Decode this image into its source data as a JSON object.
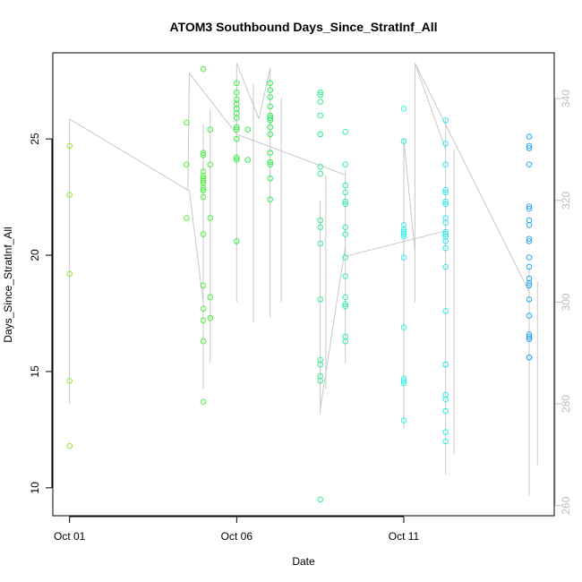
{
  "chart_data": {
    "type": "scatter",
    "title": "ATOM3 Southbound Days_Since_StratInf_All",
    "xlabel": "Date",
    "ylabel": "Days_Since_StratInf_All",
    "xlim": [
      "2014-09-30T12:00",
      "2014-10-15T12:00"
    ],
    "ylim": [
      8.8,
      28.7
    ],
    "y2lim": [
      258,
      349
    ],
    "x_ticks": [
      {
        "label": "Oct 01",
        "value": "2014-10-01"
      },
      {
        "label": "Oct 06",
        "value": "2014-10-06"
      },
      {
        "label": "Oct 11",
        "value": "2014-10-11"
      }
    ],
    "y_ticks": [
      {
        "label": "10",
        "value": 10
      },
      {
        "label": "15",
        "value": 15
      },
      {
        "label": "20",
        "value": 20
      },
      {
        "label": "25",
        "value": 25
      }
    ],
    "y2_ticks": [
      {
        "label": "260",
        "value": 260
      },
      {
        "label": "280",
        "value": 280
      },
      {
        "label": "300",
        "value": 300
      },
      {
        "label": "320",
        "value": 320
      },
      {
        "label": "340",
        "value": 340
      }
    ],
    "grid": false,
    "colors": {
      "axis": "#000000",
      "right_axis": "#bdbdbd",
      "trace": "#c8c8c8"
    },
    "series": [
      {
        "role": "points",
        "groups": [
          {
            "date": "2014-10-01T00:00",
            "color": "#8ee83a",
            "values": [
              24.7,
              22.6,
              19.2,
              14.6,
              11.8
            ]
          },
          {
            "date": "2014-10-04T12:00",
            "color": "#5eea38",
            "values": [
              25.7,
              23.9,
              21.6
            ]
          },
          {
            "date": "2014-10-05T00:00",
            "color": "#49ee3a",
            "values": [
              28.0,
              24.4,
              24.3,
              23.6,
              23.4,
              23.3,
              23.2,
              23.1,
              22.9,
              22.8,
              22.8,
              22.5,
              20.9,
              18.7,
              17.7,
              17.2,
              16.3,
              13.7
            ]
          },
          {
            "date": "2014-10-05T05:00",
            "color": "#45ee3c",
            "values": [
              25.4,
              23.9,
              21.6,
              18.2,
              17.3
            ]
          },
          {
            "date": "2014-10-06T00:00",
            "color": "#2ef040",
            "values": [
              27.4,
              27.0,
              26.7,
              26.5,
              26.3,
              26.1,
              25.9,
              25.5,
              25.4,
              25.0,
              24.2,
              24.1,
              20.6
            ]
          },
          {
            "date": "2014-10-06T08:00",
            "color": "#2ef044",
            "values": [
              25.4,
              24.1
            ]
          },
          {
            "date": "2014-10-07T00:00",
            "color": "#2bf055",
            "values": [
              27.4,
              27.1,
              26.8,
              26.4,
              26.0,
              25.9,
              25.8,
              25.5,
              25.2,
              24.4,
              24.0,
              23.9,
              23.3,
              22.4
            ]
          },
          {
            "date": "2014-10-08T12:00",
            "color": "#32f08d",
            "values": [
              27.0,
              26.9,
              26.6,
              26.0,
              25.2,
              25.2,
              23.8,
              23.5,
              21.5,
              21.2,
              20.5,
              18.1,
              15.5,
              15.3,
              14.8,
              14.6,
              9.5
            ]
          },
          {
            "date": "2014-10-09T06:00",
            "color": "#32f0a0",
            "values": [
              25.3,
              23.9,
              23.0,
              22.7,
              22.3,
              22.2,
              21.2,
              20.9,
              19.9,
              19.1,
              18.2,
              17.9,
              17.8,
              16.5,
              16.3
            ]
          },
          {
            "date": "2014-10-11T00:00",
            "color": "#2ff0e2",
            "values": [
              26.3,
              24.9,
              24.9,
              21.3,
              21.1,
              21.0,
              20.9,
              20.8,
              19.9,
              16.9,
              14.7,
              14.6,
              14.5,
              12.9
            ]
          },
          {
            "date": "2014-10-12T06:00",
            "color": "#2eebf0",
            "values": [
              25.8,
              24.8,
              23.9,
              22.8,
              22.7,
              22.3,
              22.2,
              21.6,
              21.4,
              21.0,
              20.9,
              20.8,
              20.6,
              20.3,
              19.5,
              17.6,
              15.3,
              15.3,
              14.0,
              13.8,
              13.3,
              12.4,
              12.0
            ]
          },
          {
            "date": "2014-10-14T18:00",
            "color": "#2ba6ee",
            "values": [
              25.1,
              24.7,
              24.6,
              23.9,
              22.1,
              22.0,
              21.5,
              21.3,
              20.7,
              20.6,
              19.9,
              19.5,
              19.0,
              18.8,
              18.7,
              18.1,
              17.4,
              16.6,
              16.5,
              16.4,
              16.4,
              15.6,
              15.6
            ]
          }
        ]
      },
      {
        "role": "right-axis trace",
        "segments": [
          {
            "x": [
              "2014-10-01T00:00",
              "2014-10-01T00:00"
            ],
            "y": [
              336,
              280
            ]
          },
          {
            "x": [
              "2014-10-01T00:00",
              "2014-10-04T13:00"
            ],
            "y": [
              336,
              322
            ]
          },
          {
            "x": [
              "2014-10-04T13:00",
              "2014-10-04T14:00"
            ],
            "y": [
              322,
              345
            ]
          },
          {
            "x": [
              "2014-10-04T14:00",
              "2014-10-05T00:00"
            ],
            "y": [
              322,
              300
            ]
          },
          {
            "x": [
              "2014-10-05T00:00",
              "2014-10-05T00:00"
            ],
            "y": [
              335,
              283
            ]
          },
          {
            "x": [
              "2014-10-05T05:00",
              "2014-10-05T05:00"
            ],
            "y": [
              338,
              288
            ]
          },
          {
            "x": [
              "2014-10-04T14:00",
              "2014-10-06T00:00"
            ],
            "y": [
              345,
              333
            ]
          },
          {
            "x": [
              "2014-10-06T00:00",
              "2014-10-06T00:00"
            ],
            "y": [
              347,
              300
            ]
          },
          {
            "x": [
              "2014-10-06T12:00",
              "2014-10-06T12:00"
            ],
            "y": [
              343,
              296
            ]
          },
          {
            "x": [
              "2014-10-06T00:00",
              "2014-10-06T16:00"
            ],
            "y": [
              347,
              336
            ]
          },
          {
            "x": [
              "2014-10-06T16:00",
              "2014-10-07T00:00"
            ],
            "y": [
              336,
              346
            ]
          },
          {
            "x": [
              "2014-10-07T00:00",
              "2014-10-07T00:00"
            ],
            "y": [
              346,
              297
            ]
          },
          {
            "x": [
              "2014-10-07T08:00",
              "2014-10-07T08:00"
            ],
            "y": [
              340,
              300
            ]
          },
          {
            "x": [
              "2014-10-06T00:00",
              "2014-10-09T06:00"
            ],
            "y": [
              333,
              325
            ]
          },
          {
            "x": [
              "2014-10-08T12:00",
              "2014-10-08T12:00"
            ],
            "y": [
              320,
              278
            ]
          },
          {
            "x": [
              "2014-10-08T16:00",
              "2014-10-08T16:00"
            ],
            "y": [
              325,
              283
            ]
          },
          {
            "x": [
              "2014-10-08T12:00",
              "2014-10-09T06:00"
            ],
            "y": [
              279,
              311
            ]
          },
          {
            "x": [
              "2014-10-09T06:00",
              "2014-10-09T06:00"
            ],
            "y": [
              326,
              288
            ]
          },
          {
            "x": [
              "2014-10-09T06:00",
              "2014-10-12T06:00"
            ],
            "y": [
              309,
              314
            ]
          },
          {
            "x": [
              "2014-10-11T00:00",
              "2014-10-11T00:00"
            ],
            "y": [
              332,
              275
            ]
          },
          {
            "x": [
              "2014-10-11T00:00",
              "2014-10-11T08:00"
            ],
            "y": [
              332,
              310
            ]
          },
          {
            "x": [
              "2014-10-11T08:00",
              "2014-10-11T08:00"
            ],
            "y": [
              347,
              300
            ]
          },
          {
            "x": [
              "2014-10-11T08:00",
              "2014-10-12T06:00"
            ],
            "y": [
              347,
              330
            ]
          },
          {
            "x": [
              "2014-10-12T06:00",
              "2014-10-12T06:00"
            ],
            "y": [
              336,
              266
            ]
          },
          {
            "x": [
              "2014-10-12T12:00",
              "2014-10-12T12:00"
            ],
            "y": [
              330,
              270
            ]
          },
          {
            "x": [
              "2014-10-11T08:00",
              "2014-10-14T18:00"
            ],
            "y": [
              347,
              302
            ]
          },
          {
            "x": [
              "2014-10-14T18:00",
              "2014-10-14T18:00"
            ],
            "y": [
              307,
              262
            ]
          },
          {
            "x": [
              "2014-10-15T00:00",
              "2014-10-15T00:00"
            ],
            "y": [
              304,
              268
            ]
          }
        ]
      }
    ]
  }
}
